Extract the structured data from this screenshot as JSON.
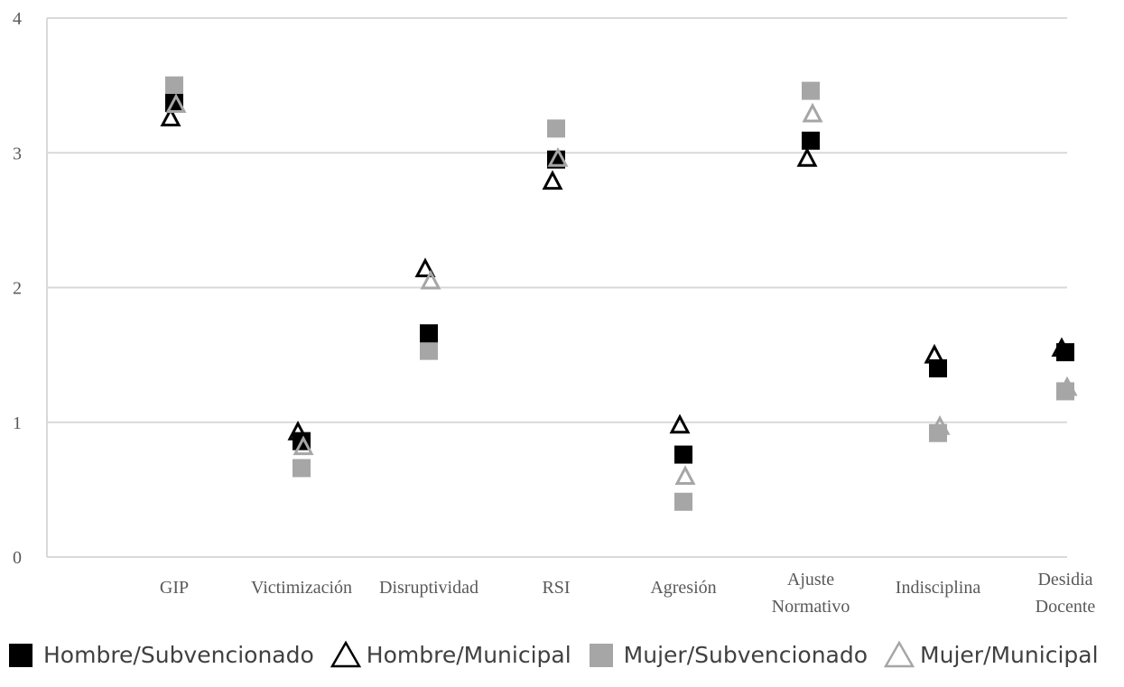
{
  "chart_data": {
    "type": "scatter",
    "title": "",
    "xlabel": "",
    "ylabel": "",
    "ylim": [
      0,
      4
    ],
    "yticks": [
      "0",
      "1",
      "2",
      "3",
      "4"
    ],
    "grid": true,
    "legend_position": "bottom",
    "categories": [
      [
        "GIP"
      ],
      [
        "Victimización"
      ],
      [
        "Disruptividad"
      ],
      [
        "RSI"
      ],
      [
        "Agresión"
      ],
      [
        "Ajuste",
        "Normativo"
      ],
      [
        "Indisciplina"
      ],
      [
        "Desidia",
        "Docente"
      ]
    ],
    "series": [
      {
        "name": "Hombre/Subvencionado",
        "marker": "square",
        "color": "#000000",
        "values": [
          3.37,
          0.86,
          1.66,
          2.95,
          0.76,
          3.09,
          1.4,
          1.52
        ]
      },
      {
        "name": "Hombre/Municipal",
        "marker": "triangle-open",
        "color": "#000000",
        "values": [
          3.26,
          0.93,
          2.14,
          2.79,
          0.98,
          2.96,
          1.5,
          1.55
        ]
      },
      {
        "name": "Mujer/Subvencionado",
        "marker": "square",
        "color": "#a6a6a6",
        "values": [
          3.5,
          0.66,
          1.53,
          3.18,
          0.41,
          3.46,
          0.92,
          1.23
        ]
      },
      {
        "name": "Mujer/Municipal",
        "marker": "triangle-open",
        "color": "#a6a6a6",
        "values": [
          3.36,
          0.82,
          2.05,
          2.96,
          0.6,
          3.29,
          0.97,
          1.26
        ]
      }
    ]
  }
}
